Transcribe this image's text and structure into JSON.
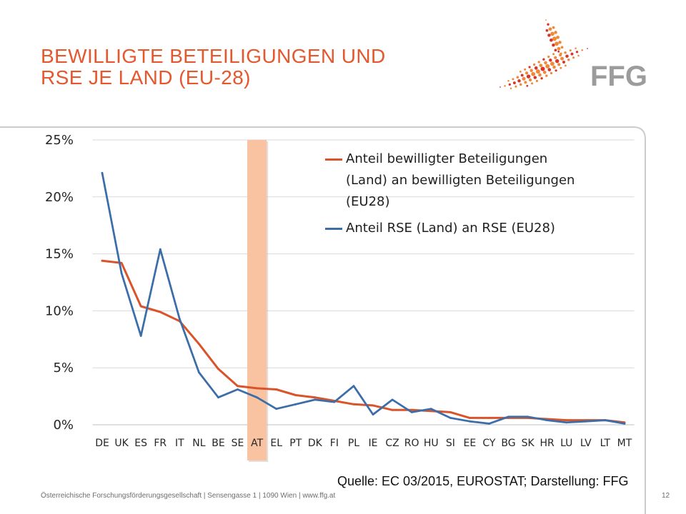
{
  "slide": {
    "title": "BEWILLIGTE BETEILIGUNGEN UND RSE JE LAND (EU-28)",
    "source": "Quelle: EC 03/2015, EUROSTAT; Darstellung: FFG",
    "footer": "Österreichische Forschungsförderungsgesellschaft | Sensengasse 1 | 1090 Wien | www.ffg.at",
    "page_number": "12"
  },
  "logo": {
    "text": "FFG",
    "icon": "ffg-dot-swoosh-icon"
  },
  "colors": {
    "title": "#e5572c",
    "highlight": "#f9c3a2",
    "grid": "#d9d9d9",
    "axis": "#bfbfbf",
    "text": "#262626",
    "frame": "#cccccc",
    "logo_orange": "#f0883a",
    "logo_red": "#d8352a",
    "logo_gray": "#9c9c9c"
  },
  "chart_data": {
    "type": "line",
    "categories": [
      "DE",
      "UK",
      "ES",
      "FR",
      "IT",
      "NL",
      "BE",
      "SE",
      "AT",
      "EL",
      "PT",
      "DK",
      "FI",
      "PL",
      "IE",
      "CZ",
      "RO",
      "HU",
      "SI",
      "EE",
      "CY",
      "BG",
      "SK",
      "HR",
      "LU",
      "LV",
      "LT",
      "MT"
    ],
    "series": [
      {
        "name": "Anteil bewilligter Beteiligungen (Land) an bewilligten Beteiligungen (EU28)",
        "color": "#d9532b",
        "values": [
          14.4,
          14.2,
          10.4,
          9.9,
          9.1,
          7.1,
          4.9,
          3.4,
          3.2,
          3.1,
          2.6,
          2.4,
          2.1,
          1.8,
          1.7,
          1.3,
          1.3,
          1.2,
          1.1,
          0.6,
          0.6,
          0.6,
          0.6,
          0.5,
          0.4,
          0.4,
          0.4,
          0.2
        ]
      },
      {
        "name": "Anteil RSE (Land) an RSE (EU28)",
        "color": "#3b6ea8",
        "values": [
          22.1,
          13.3,
          7.8,
          15.4,
          9.3,
          4.6,
          2.4,
          3.1,
          2.4,
          1.4,
          1.8,
          2.2,
          2.0,
          3.4,
          0.9,
          2.2,
          1.1,
          1.4,
          0.6,
          0.3,
          0.1,
          0.7,
          0.7,
          0.4,
          0.2,
          0.3,
          0.4,
          0.1
        ]
      }
    ],
    "ylim": [
      0,
      25
    ],
    "y_ticks": [
      0,
      5,
      10,
      15,
      20,
      25
    ],
    "y_tick_labels": [
      "0%",
      "5%",
      "10%",
      "15%",
      "20%",
      "25%"
    ],
    "grid": true,
    "legend_position": "top-right",
    "highlight_category": "AT"
  }
}
